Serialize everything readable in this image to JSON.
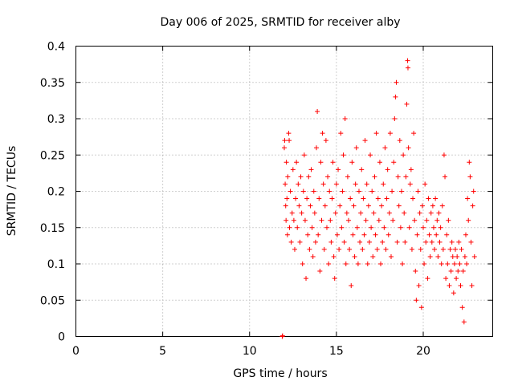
{
  "chart_data": {
    "type": "scatter",
    "title": "Day 006 of 2025, SRMTID for receiver alby",
    "xlabel": "GPS time / hours",
    "ylabel": "SRMTID / TECUs",
    "xlim": [
      0,
      24
    ],
    "ylim": [
      0,
      0.4
    ],
    "xticks": [
      0,
      5,
      10,
      15,
      20
    ],
    "xtick_labels": [
      "0",
      "5",
      "10",
      "15",
      "20"
    ],
    "yticks": [
      0,
      0.05,
      0.1,
      0.15,
      0.2,
      0.25,
      0.3,
      0.35,
      0.4
    ],
    "ytick_labels": [
      "0",
      "0.05",
      "0.1",
      "0.15",
      "0.2",
      "0.25",
      "0.3",
      "0.35",
      "0.4"
    ],
    "grid": true,
    "marker": "plus",
    "color": "#ff0000",
    "series": [
      {
        "points": [
          [
            11.88,
            0.0
          ],
          [
            11.9,
            0.001
          ],
          [
            12.0,
            0.26
          ],
          [
            12.02,
            0.27
          ],
          [
            12.05,
            0.21
          ],
          [
            12.08,
            0.18
          ],
          [
            12.1,
            0.16
          ],
          [
            12.12,
            0.24
          ],
          [
            12.15,
            0.19
          ],
          [
            12.18,
            0.14
          ],
          [
            12.2,
            0.22
          ],
          [
            12.25,
            0.28
          ],
          [
            12.28,
            0.27
          ],
          [
            12.3,
            0.15
          ],
          [
            12.35,
            0.2
          ],
          [
            12.4,
            0.13
          ],
          [
            12.45,
            0.17
          ],
          [
            12.5,
            0.23
          ],
          [
            12.55,
            0.16
          ],
          [
            12.6,
            0.12
          ],
          [
            12.65,
            0.19
          ],
          [
            12.7,
            0.24
          ],
          [
            12.75,
            0.15
          ],
          [
            12.8,
            0.21
          ],
          [
            12.85,
            0.18
          ],
          [
            12.9,
            0.13
          ],
          [
            12.95,
            0.22
          ],
          [
            13.0,
            0.17
          ],
          [
            13.05,
            0.1
          ],
          [
            13.1,
            0.2
          ],
          [
            13.15,
            0.25
          ],
          [
            13.2,
            0.16
          ],
          [
            13.25,
            0.08
          ],
          [
            13.3,
            0.19
          ],
          [
            13.35,
            0.14
          ],
          [
            13.4,
            0.22
          ],
          [
            13.45,
            0.12
          ],
          [
            13.5,
            0.18
          ],
          [
            13.55,
            0.23
          ],
          [
            13.6,
            0.15
          ],
          [
            13.65,
            0.11
          ],
          [
            13.7,
            0.2
          ],
          [
            13.75,
            0.17
          ],
          [
            13.8,
            0.13
          ],
          [
            13.85,
            0.26
          ],
          [
            13.9,
            0.31
          ],
          [
            13.95,
            0.14
          ],
          [
            14.0,
            0.19
          ],
          [
            14.05,
            0.09
          ],
          [
            14.1,
            0.24
          ],
          [
            14.15,
            0.16
          ],
          [
            14.2,
            0.28
          ],
          [
            14.25,
            0.21
          ],
          [
            14.3,
            0.12
          ],
          [
            14.35,
            0.18
          ],
          [
            14.4,
            0.27
          ],
          [
            14.45,
            0.15
          ],
          [
            14.5,
            0.22
          ],
          [
            14.55,
            0.1
          ],
          [
            14.6,
            0.2
          ],
          [
            14.65,
            0.16
          ],
          [
            14.7,
            0.13
          ],
          [
            14.75,
            0.19
          ],
          [
            14.8,
            0.24
          ],
          [
            14.85,
            0.11
          ],
          [
            14.9,
            0.08
          ],
          [
            14.95,
            0.17
          ],
          [
            15.0,
            0.21
          ],
          [
            15.05,
            0.14
          ],
          [
            15.1,
            0.23
          ],
          [
            15.15,
            0.12
          ],
          [
            15.2,
            0.18
          ],
          [
            15.25,
            0.28
          ],
          [
            15.3,
            0.15
          ],
          [
            15.35,
            0.2
          ],
          [
            15.4,
            0.25
          ],
          [
            15.45,
            0.13
          ],
          [
            15.5,
            0.3
          ],
          [
            15.55,
            0.1
          ],
          [
            15.6,
            0.17
          ],
          [
            15.65,
            0.22
          ],
          [
            15.7,
            0.16
          ],
          [
            15.75,
            0.12
          ],
          [
            15.8,
            0.19
          ],
          [
            15.85,
            0.07
          ],
          [
            15.9,
            0.24
          ],
          [
            15.95,
            0.14
          ],
          [
            16.0,
            0.18
          ],
          [
            16.05,
            0.11
          ],
          [
            16.1,
            0.21
          ],
          [
            16.15,
            0.26
          ],
          [
            16.2,
            0.15
          ],
          [
            16.25,
            0.1
          ],
          [
            16.3,
            0.2
          ],
          [
            16.35,
            0.13
          ],
          [
            16.4,
            0.17
          ],
          [
            16.45,
            0.23
          ],
          [
            16.5,
            0.12
          ],
          [
            16.55,
            0.19
          ],
          [
            16.6,
            0.14
          ],
          [
            16.65,
            0.27
          ],
          [
            16.7,
            0.16
          ],
          [
            16.75,
            0.21
          ],
          [
            16.8,
            0.1
          ],
          [
            16.85,
            0.18
          ],
          [
            16.9,
            0.13
          ],
          [
            16.95,
            0.25
          ],
          [
            17.0,
            0.15
          ],
          [
            17.05,
            0.2
          ],
          [
            17.1,
            0.11
          ],
          [
            17.15,
            0.17
          ],
          [
            17.2,
            0.22
          ],
          [
            17.25,
            0.14
          ],
          [
            17.3,
            0.28
          ],
          [
            17.35,
            0.12
          ],
          [
            17.4,
            0.19
          ],
          [
            17.45,
            0.16
          ],
          [
            17.5,
            0.24
          ],
          [
            17.55,
            0.1
          ],
          [
            17.6,
            0.18
          ],
          [
            17.65,
            0.13
          ],
          [
            17.7,
            0.21
          ],
          [
            17.75,
            0.15
          ],
          [
            17.8,
            0.26
          ],
          [
            17.85,
            0.12
          ],
          [
            17.9,
            0.19
          ],
          [
            17.95,
            0.23
          ],
          [
            18.0,
            0.14
          ],
          [
            18.05,
            0.17
          ],
          [
            18.1,
            0.28
          ],
          [
            18.15,
            0.11
          ],
          [
            18.2,
            0.2
          ],
          [
            18.25,
            0.16
          ],
          [
            18.3,
            0.24
          ],
          [
            18.35,
            0.3
          ],
          [
            18.4,
            0.33
          ],
          [
            18.45,
            0.35
          ],
          [
            18.5,
            0.13
          ],
          [
            18.55,
            0.22
          ],
          [
            18.6,
            0.18
          ],
          [
            18.65,
            0.27
          ],
          [
            18.7,
            0.15
          ],
          [
            18.75,
            0.2
          ],
          [
            18.8,
            0.1
          ],
          [
            18.85,
            0.25
          ],
          [
            18.9,
            0.17
          ],
          [
            18.95,
            0.13
          ],
          [
            19.0,
            0.22
          ],
          [
            19.05,
            0.32
          ],
          [
            19.1,
            0.38
          ],
          [
            19.12,
            0.37
          ],
          [
            19.15,
            0.26
          ],
          [
            19.2,
            0.15
          ],
          [
            19.25,
            0.21
          ],
          [
            19.3,
            0.23
          ],
          [
            19.35,
            0.12
          ],
          [
            19.4,
            0.19
          ],
          [
            19.45,
            0.28
          ],
          [
            19.5,
            0.16
          ],
          [
            19.55,
            0.09
          ],
          [
            19.6,
            0.05
          ],
          [
            19.65,
            0.14
          ],
          [
            19.7,
            0.2
          ],
          [
            19.75,
            0.07
          ],
          [
            19.8,
            0.17
          ],
          [
            19.85,
            0.12
          ],
          [
            19.9,
            0.04
          ],
          [
            19.95,
            0.18
          ],
          [
            20.0,
            0.15
          ],
          [
            20.05,
            0.1
          ],
          [
            20.1,
            0.21
          ],
          [
            20.15,
            0.13
          ],
          [
            20.2,
            0.16
          ],
          [
            20.25,
            0.08
          ],
          [
            20.3,
            0.19
          ],
          [
            20.35,
            0.14
          ],
          [
            20.4,
            0.11
          ],
          [
            20.45,
            0.17
          ],
          [
            20.5,
            0.13
          ],
          [
            20.55,
            0.18
          ],
          [
            20.6,
            0.15
          ],
          [
            20.65,
            0.12
          ],
          [
            20.7,
            0.19
          ],
          [
            20.75,
            0.14
          ],
          [
            20.8,
            0.16
          ],
          [
            20.85,
            0.11
          ],
          [
            20.9,
            0.17
          ],
          [
            20.95,
            0.13
          ],
          [
            21.0,
            0.15
          ],
          [
            21.05,
            0.1
          ],
          [
            21.1,
            0.18
          ],
          [
            21.15,
            0.12
          ],
          [
            21.2,
            0.25
          ],
          [
            21.25,
            0.22
          ],
          [
            21.3,
            0.08
          ],
          [
            21.35,
            0.14
          ],
          [
            21.4,
            0.1
          ],
          [
            21.45,
            0.16
          ],
          [
            21.5,
            0.07
          ],
          [
            21.55,
            0.12
          ],
          [
            21.6,
            0.09
          ],
          [
            21.65,
            0.13
          ],
          [
            21.7,
            0.11
          ],
          [
            21.75,
            0.06
          ],
          [
            21.8,
            0.1
          ],
          [
            21.85,
            0.12
          ],
          [
            21.9,
            0.08
          ],
          [
            21.95,
            0.11
          ],
          [
            22.0,
            0.09
          ],
          [
            22.05,
            0.13
          ],
          [
            22.1,
            0.1
          ],
          [
            22.15,
            0.07
          ],
          [
            22.2,
            0.12
          ],
          [
            22.25,
            0.04
          ],
          [
            22.3,
            0.09
          ],
          [
            22.35,
            0.02
          ],
          [
            22.4,
            0.11
          ],
          [
            22.45,
            0.14
          ],
          [
            22.5,
            0.1
          ],
          [
            22.55,
            0.19
          ],
          [
            22.6,
            0.16
          ],
          [
            22.65,
            0.24
          ],
          [
            22.7,
            0.22
          ],
          [
            22.75,
            0.13
          ],
          [
            22.8,
            0.07
          ],
          [
            22.85,
            0.18
          ],
          [
            22.9,
            0.2
          ],
          [
            22.95,
            0.11
          ]
        ]
      }
    ]
  }
}
